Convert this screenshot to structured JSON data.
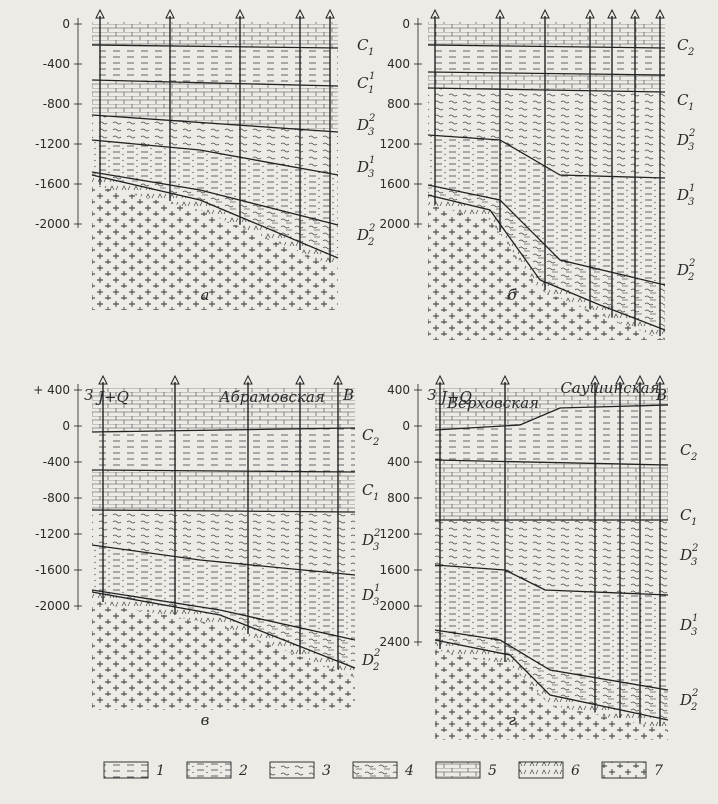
{
  "panels": [
    {
      "id": "a",
      "letter": "а",
      "depth_labels": [
        "0",
        "-400",
        "-800",
        "-1200",
        "-1600",
        "-2000"
      ],
      "strata": [
        {
          "base": "C",
          "sub": "1",
          "sup": ""
        },
        {
          "base": "C",
          "sub": "1",
          "sup": "1"
        },
        {
          "base": "D",
          "sub": "3",
          "sup": "2"
        },
        {
          "base": "D",
          "sub": "3",
          "sup": "1"
        },
        {
          "base": "D",
          "sub": "2",
          "sup": "2"
        }
      ]
    },
    {
      "id": "b",
      "letter": "б",
      "depth_labels": [
        "0",
        "400",
        "800",
        "1200",
        "1600",
        "2000"
      ],
      "strata": [
        {
          "base": "C",
          "sub": "2",
          "sup": ""
        },
        {
          "base": "C",
          "sub": "1",
          "sup": ""
        },
        {
          "base": "D",
          "sub": "3",
          "sup": "2"
        },
        {
          "base": "D",
          "sub": "3",
          "sup": "1"
        },
        {
          "base": "D",
          "sub": "2",
          "sup": "2"
        }
      ]
    },
    {
      "id": "v",
      "letter": "в",
      "depth_labels": [
        "+ 400",
        "0",
        "-400",
        "-800",
        "-1200",
        "-1600",
        "-2000"
      ],
      "west": "З",
      "east": "В",
      "field_names": [
        "Абрамовская"
      ],
      "cover": "J+Q",
      "strata": [
        {
          "base": "C",
          "sub": "2",
          "sup": ""
        },
        {
          "base": "C",
          "sub": "1",
          "sup": ""
        },
        {
          "base": "D",
          "sub": "3",
          "sup": "2"
        },
        {
          "base": "D",
          "sub": "3",
          "sup": "1"
        },
        {
          "base": "D",
          "sub": "2",
          "sup": "2"
        }
      ]
    },
    {
      "id": "g",
      "letter": "г",
      "depth_labels": [
        "400",
        "0",
        "400",
        "800",
        "1200",
        "1600",
        "2000",
        "2400"
      ],
      "west": "З",
      "east": "В",
      "field_names": [
        "Верховская",
        "Саушинская"
      ],
      "cover": "J+Q",
      "strata": [
        {
          "base": "C",
          "sub": "2",
          "sup": ""
        },
        {
          "base": "C",
          "sub": "1",
          "sup": ""
        },
        {
          "base": "D",
          "sub": "3",
          "sup": "2"
        },
        {
          "base": "D",
          "sub": "3",
          "sup": "1"
        },
        {
          "base": "D",
          "sub": "2",
          "sup": "2"
        }
      ]
    }
  ],
  "legend": [
    {
      "number": "1",
      "pattern": "clay"
    },
    {
      "number": "2",
      "pattern": "silty-clay"
    },
    {
      "number": "3",
      "pattern": "sandstone"
    },
    {
      "number": "4",
      "pattern": "siltstone"
    },
    {
      "number": "5",
      "pattern": "limestone"
    },
    {
      "number": "6",
      "pattern": "effusive"
    },
    {
      "number": "7",
      "pattern": "crystalline-basement"
    }
  ]
}
